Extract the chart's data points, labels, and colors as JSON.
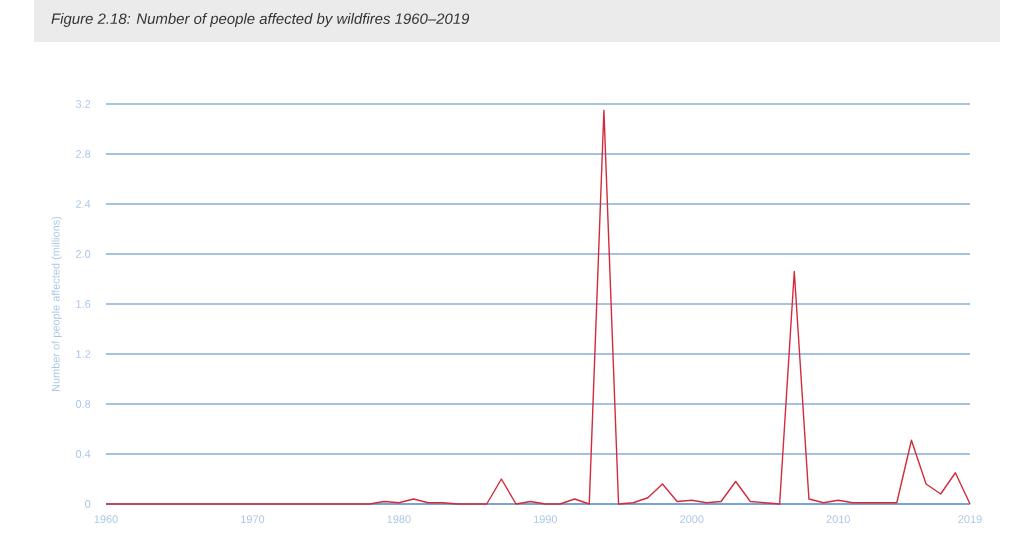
{
  "chart_data": {
    "type": "line",
    "title": "Figure 2.18: Number of people affected by wildfires 1960–2019",
    "ylabel": "Number of people affected (millions)",
    "x": [
      1960,
      1961,
      1962,
      1963,
      1964,
      1965,
      1966,
      1967,
      1968,
      1969,
      1970,
      1971,
      1972,
      1973,
      1974,
      1975,
      1976,
      1977,
      1978,
      1979,
      1980,
      1981,
      1982,
      1983,
      1984,
      1985,
      1986,
      1987,
      1988,
      1989,
      1990,
      1991,
      1992,
      1993,
      1994,
      1995,
      1996,
      1997,
      1998,
      1999,
      2000,
      2001,
      2002,
      2003,
      2004,
      2005,
      2006,
      2007,
      2008,
      2009,
      2010,
      2011,
      2012,
      2013,
      2014,
      2015,
      2016,
      2017,
      2018,
      2019
    ],
    "series": [
      {
        "color": "#d42a3c",
        "values": [
          0,
          0,
          0,
          0,
          0,
          0,
          0,
          0,
          0,
          0,
          0,
          0,
          0,
          0,
          0,
          0,
          0,
          0,
          0,
          0.02,
          0.01,
          0.04,
          0.01,
          0.01,
          0,
          0,
          0,
          0.2,
          0,
          0.02,
          0,
          0,
          0.04,
          0,
          3.15,
          0,
          0.01,
          0.05,
          0.16,
          0.02,
          0.03,
          0.01,
          0.02,
          0.18,
          0.02,
          0.01,
          0,
          1.86,
          0.04,
          0.01,
          0.03,
          0.01,
          0.01,
          0.01,
          0.01,
          0.51,
          0.16,
          0.08,
          0.25,
          0
        ]
      }
    ],
    "xlim": [
      1960,
      2019
    ],
    "xticks": [
      1960,
      1970,
      1980,
      1990,
      2000,
      2010,
      2019
    ],
    "ylim": [
      0,
      3.2
    ],
    "yticks": [
      0,
      0.4,
      0.8,
      1.2,
      1.6,
      {
        "value": 2,
        "label": "2.0"
      },
      2.4,
      2.8,
      3.2
    ],
    "grid": "y",
    "marker": "none",
    "line_style": "solid"
  }
}
